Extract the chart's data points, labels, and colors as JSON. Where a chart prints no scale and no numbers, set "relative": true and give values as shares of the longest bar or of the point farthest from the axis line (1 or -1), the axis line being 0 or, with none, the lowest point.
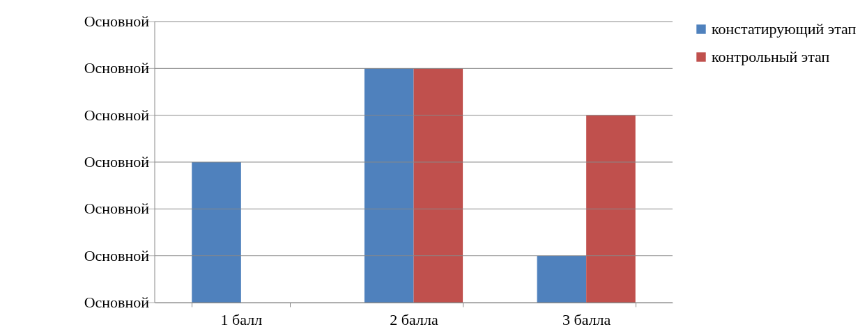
{
  "chart_data": {
    "type": "bar",
    "categories": [
      "1 балл",
      "2 балла",
      "3 балла"
    ],
    "series": [
      {
        "name": "констатирующий этап",
        "color": "#4f81bd",
        "values": [
          0.6,
          1,
          0.2
        ]
      },
      {
        "name": "контрольный этап",
        "color": "#c0504d",
        "values": [
          0,
          1,
          0.8
        ]
      }
    ],
    "relative": true,
    "annotations": [
      "Основной",
      "Основной",
      "Основной",
      "Основной",
      "Основной",
      "Основной",
      "Основной"
    ],
    "grid": "y",
    "legend": "right"
  }
}
